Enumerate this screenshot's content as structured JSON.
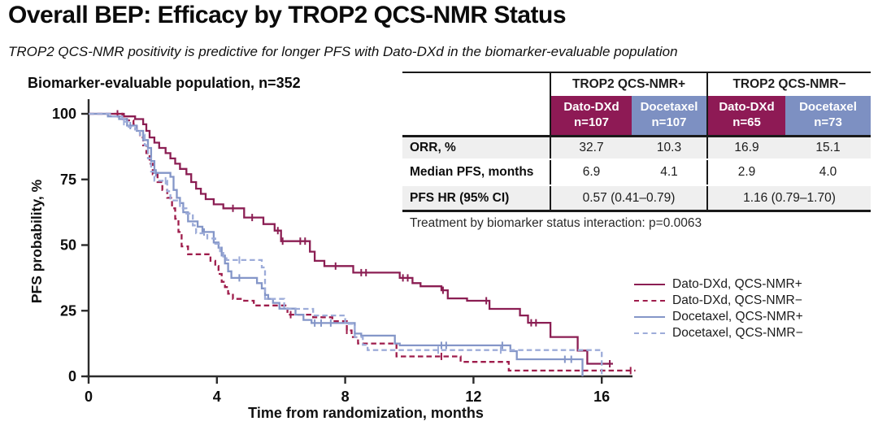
{
  "title": "Overall BEP: Efficacy by TROP2 QCS-NMR Status",
  "subtitle": "TROP2 QCS-NMR positivity is predictive for longer PFS with Dato-DXd in the biomarker-evaluable population",
  "table": {
    "group_headers": [
      "TROP2 QCS-NMR+",
      "TROP2 QCS-NMR−"
    ],
    "arm_headers": [
      {
        "arm": "Dato-DXd",
        "n": "n=107"
      },
      {
        "arm": "Docetaxel",
        "n": "n=107"
      },
      {
        "arm": "Dato-DXd",
        "n": "n=65"
      },
      {
        "arm": "Docetaxel",
        "n": "n=73"
      }
    ],
    "rows": [
      {
        "label": "ORR, %",
        "values": [
          "32.7",
          "10.3",
          "16.9",
          "15.1"
        ]
      },
      {
        "label": "Median PFS, months",
        "values": [
          "6.9",
          "4.1",
          "2.9",
          "4.0"
        ]
      },
      {
        "label": "PFS HR (95% CI)",
        "values": [
          "0.57 (0.41–0.79)",
          "1.16 (0.79–1.70)"
        ]
      }
    ],
    "footnote": "Treatment by biomarker status interaction: p=0.0063"
  },
  "colors": {
    "dato_header": "#8E1A55",
    "docetaxel_header": "#7D90C2",
    "row_shade": "#EFEFEF"
  },
  "chart_data": {
    "type": "line",
    "subtype": "kaplan-meier-step",
    "title": "Biomarker-evaluable population, n=352",
    "xlabel": "Time from randomization, months",
    "ylabel": "PFS probability, %",
    "xlim": [
      0,
      17.2
    ],
    "ylim": [
      0,
      100
    ],
    "xticks": [
      0,
      4,
      8,
      12,
      16
    ],
    "yticks": [
      0,
      25,
      50,
      75,
      100
    ],
    "grid": false,
    "legend_position": "right",
    "series": [
      {
        "name": "Dato-DXd, QCS-NMR+",
        "color": "#8B1E53",
        "dash": "solid",
        "points": [
          [
            0,
            100
          ],
          [
            0.95,
            100
          ],
          [
            1.1,
            99
          ],
          [
            1.45,
            98
          ],
          [
            1.7,
            96
          ],
          [
            1.8,
            93.5
          ],
          [
            1.9,
            91
          ],
          [
            2.05,
            89
          ],
          [
            2.2,
            87
          ],
          [
            2.4,
            85
          ],
          [
            2.55,
            83
          ],
          [
            2.7,
            81
          ],
          [
            2.85,
            79
          ],
          [
            3.05,
            77
          ],
          [
            3.2,
            74
          ],
          [
            3.35,
            71.5
          ],
          [
            3.5,
            69.5
          ],
          [
            3.65,
            67.5
          ],
          [
            3.9,
            65.5
          ],
          [
            4.2,
            64
          ],
          [
            4.85,
            60.5
          ],
          [
            5.45,
            58
          ],
          [
            5.8,
            55.5
          ],
          [
            6.0,
            51.5
          ],
          [
            6.9,
            47.5
          ],
          [
            7.05,
            44
          ],
          [
            7.35,
            42
          ],
          [
            8.25,
            39.5
          ],
          [
            9.7,
            37.5
          ],
          [
            10.1,
            35.5
          ],
          [
            10.35,
            34.3
          ],
          [
            11.0,
            32.8
          ],
          [
            11.2,
            29.7
          ],
          [
            11.8,
            28.8
          ],
          [
            12.5,
            25.7
          ],
          [
            13.45,
            23.2
          ],
          [
            13.7,
            20.4
          ],
          [
            14.4,
            15
          ],
          [
            15.25,
            9.8
          ],
          [
            15.55,
            4.8
          ],
          [
            16.35,
            4.8
          ]
        ],
        "censors": [
          0.9,
          4.5,
          5.1,
          5.9,
          6.05,
          6.6,
          6.75,
          7.7,
          8.5,
          8.65,
          9.8,
          9.95,
          11.05,
          12.4,
          13.8,
          13.95,
          16.25
        ]
      },
      {
        "name": "Dato-DXd, QCS-NMR−",
        "color": "#9E1C4B",
        "dash": "dashed",
        "points": [
          [
            0,
            100
          ],
          [
            0.8,
            100
          ],
          [
            1.0,
            99
          ],
          [
            1.2,
            97.5
          ],
          [
            1.4,
            96
          ],
          [
            1.5,
            94
          ],
          [
            1.6,
            91
          ],
          [
            1.7,
            88
          ],
          [
            1.8,
            85
          ],
          [
            1.9,
            81
          ],
          [
            2.0,
            77
          ],
          [
            2.15,
            74
          ],
          [
            2.3,
            71
          ],
          [
            2.45,
            68
          ],
          [
            2.6,
            64
          ],
          [
            2.7,
            60
          ],
          [
            2.8,
            55
          ],
          [
            2.9,
            49.5
          ],
          [
            3.1,
            46.5
          ],
          [
            3.8,
            44
          ],
          [
            3.95,
            42
          ],
          [
            4.05,
            39
          ],
          [
            4.15,
            36
          ],
          [
            4.25,
            34
          ],
          [
            4.35,
            31.5
          ],
          [
            4.5,
            29.5
          ],
          [
            4.85,
            28.8
          ],
          [
            5.15,
            27
          ],
          [
            6.2,
            23.5
          ],
          [
            7.0,
            22.5
          ],
          [
            7.6,
            21
          ],
          [
            8.05,
            17.5
          ],
          [
            8.2,
            15
          ],
          [
            8.4,
            12.5
          ],
          [
            9.6,
            7.6
          ],
          [
            11.6,
            5.5
          ],
          [
            13.1,
            2.2
          ],
          [
            17.05,
            2.2
          ]
        ],
        "censors": [
          1.05,
          6.3,
          8.05,
          11.0,
          16.9
        ]
      },
      {
        "name": "Docetaxel, QCS-NMR+",
        "color": "#8496C8",
        "dash": "solid",
        "points": [
          [
            0,
            100
          ],
          [
            0.6,
            99
          ],
          [
            0.95,
            98
          ],
          [
            1.2,
            95.5
          ],
          [
            1.5,
            93.5
          ],
          [
            1.7,
            90
          ],
          [
            1.85,
            87
          ],
          [
            1.95,
            82
          ],
          [
            2.05,
            77.5
          ],
          [
            2.55,
            76
          ],
          [
            2.65,
            71
          ],
          [
            2.75,
            68
          ],
          [
            2.85,
            66
          ],
          [
            2.95,
            62.5
          ],
          [
            3.1,
            59
          ],
          [
            3.4,
            57
          ],
          [
            3.55,
            55
          ],
          [
            3.9,
            51
          ],
          [
            4.05,
            49
          ],
          [
            4.15,
            46
          ],
          [
            4.25,
            43
          ],
          [
            4.35,
            40
          ],
          [
            4.45,
            37.5
          ],
          [
            5.25,
            35.5
          ],
          [
            5.4,
            33.5
          ],
          [
            5.5,
            31
          ],
          [
            5.6,
            29.5
          ],
          [
            5.75,
            28
          ],
          [
            5.95,
            25.8
          ],
          [
            6.45,
            23.5
          ],
          [
            6.7,
            21.5
          ],
          [
            6.95,
            20.3
          ],
          [
            8.3,
            16.3
          ],
          [
            8.5,
            15.5
          ],
          [
            9.55,
            12.5
          ],
          [
            9.7,
            11.8
          ],
          [
            13.15,
            9.6
          ],
          [
            13.35,
            6.5
          ],
          [
            15.35,
            6.5
          ],
          [
            15.4,
            0
          ]
        ],
        "censors": [
          1.3,
          2.1,
          3.6,
          4.7,
          7.05,
          7.25,
          7.55,
          11.0,
          11.15,
          12.9,
          14.85,
          15.05
        ]
      },
      {
        "name": "Docetaxel, QCS-NMR−",
        "color": "#9DACD9",
        "dash": "dashed",
        "points": [
          [
            0,
            100
          ],
          [
            0.7,
            99
          ],
          [
            1.05,
            97
          ],
          [
            1.25,
            95
          ],
          [
            1.45,
            94
          ],
          [
            1.6,
            92
          ],
          [
            1.75,
            88
          ],
          [
            1.85,
            83
          ],
          [
            1.95,
            78
          ],
          [
            2.05,
            74.5
          ],
          [
            2.45,
            70.5
          ],
          [
            2.55,
            67
          ],
          [
            2.85,
            64
          ],
          [
            3.05,
            62
          ],
          [
            3.25,
            57.5
          ],
          [
            3.35,
            54.5
          ],
          [
            3.7,
            52.5
          ],
          [
            3.95,
            50.5
          ],
          [
            4.1,
            47
          ],
          [
            4.2,
            45
          ],
          [
            4.3,
            44.3
          ],
          [
            5.4,
            41.5
          ],
          [
            5.5,
            29.5
          ],
          [
            6.1,
            25.7
          ],
          [
            7.0,
            23.2
          ],
          [
            8.0,
            20
          ],
          [
            8.3,
            15
          ],
          [
            8.55,
            12
          ],
          [
            8.7,
            10
          ],
          [
            15.95,
            10
          ],
          [
            16.0,
            0
          ]
        ],
        "censors": [
          1.1,
          2.4,
          4.7,
          10.9,
          12.85
        ]
      }
    ]
  }
}
